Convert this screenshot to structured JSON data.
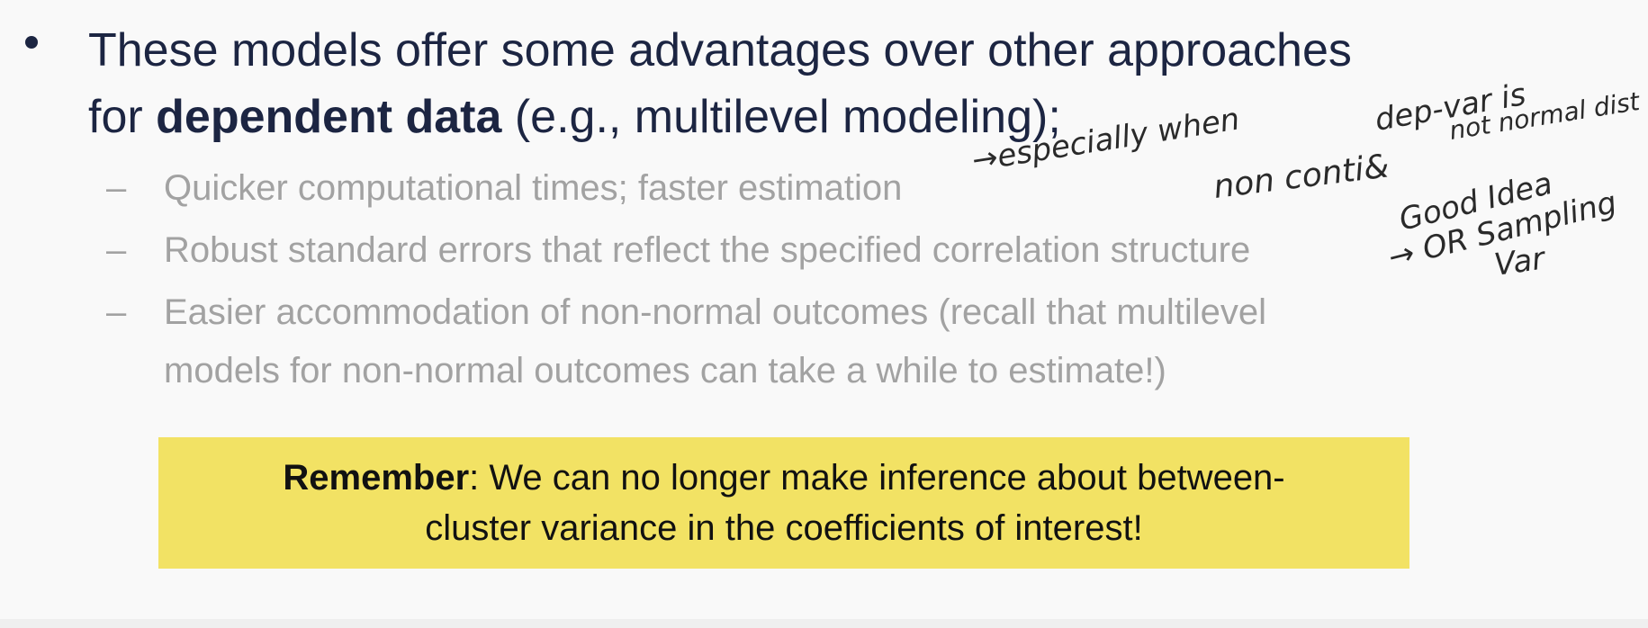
{
  "slide": {
    "bullet": {
      "line1": "These models offer some advantages over other approaches",
      "line2_prefix": "for ",
      "line2_bold": "dependent data",
      "line2_suffix": " (e.g., multilevel modeling);"
    },
    "sub_bullets": [
      {
        "dash": "–",
        "text": "Quicker computational times; faster estimation"
      },
      {
        "dash": "–",
        "text": "Robust standard errors that reflect the specified correlation structure"
      },
      {
        "dash": "–",
        "text": "Easier accommodation of non-normal outcomes (recall that multilevel",
        "text2": "models for non-normal outcomes can take a while to estimate!)"
      }
    ],
    "callout": {
      "bold": "Remember",
      "rest_line1": ": We can no longer make inference about between-",
      "line2": "cluster variance in the coefficients of interest!"
    }
  },
  "annotations": {
    "note1_line1": "dep-var is",
    "note1_line2": "→especially when",
    "note1_line3": "not normal dist",
    "note1_line4": "non conti&",
    "note2_line1": "Good Idea",
    "note2_line2": "→ OR Sampling",
    "note2_line3": "Var",
    "ink_color": "#2a2a2a"
  }
}
